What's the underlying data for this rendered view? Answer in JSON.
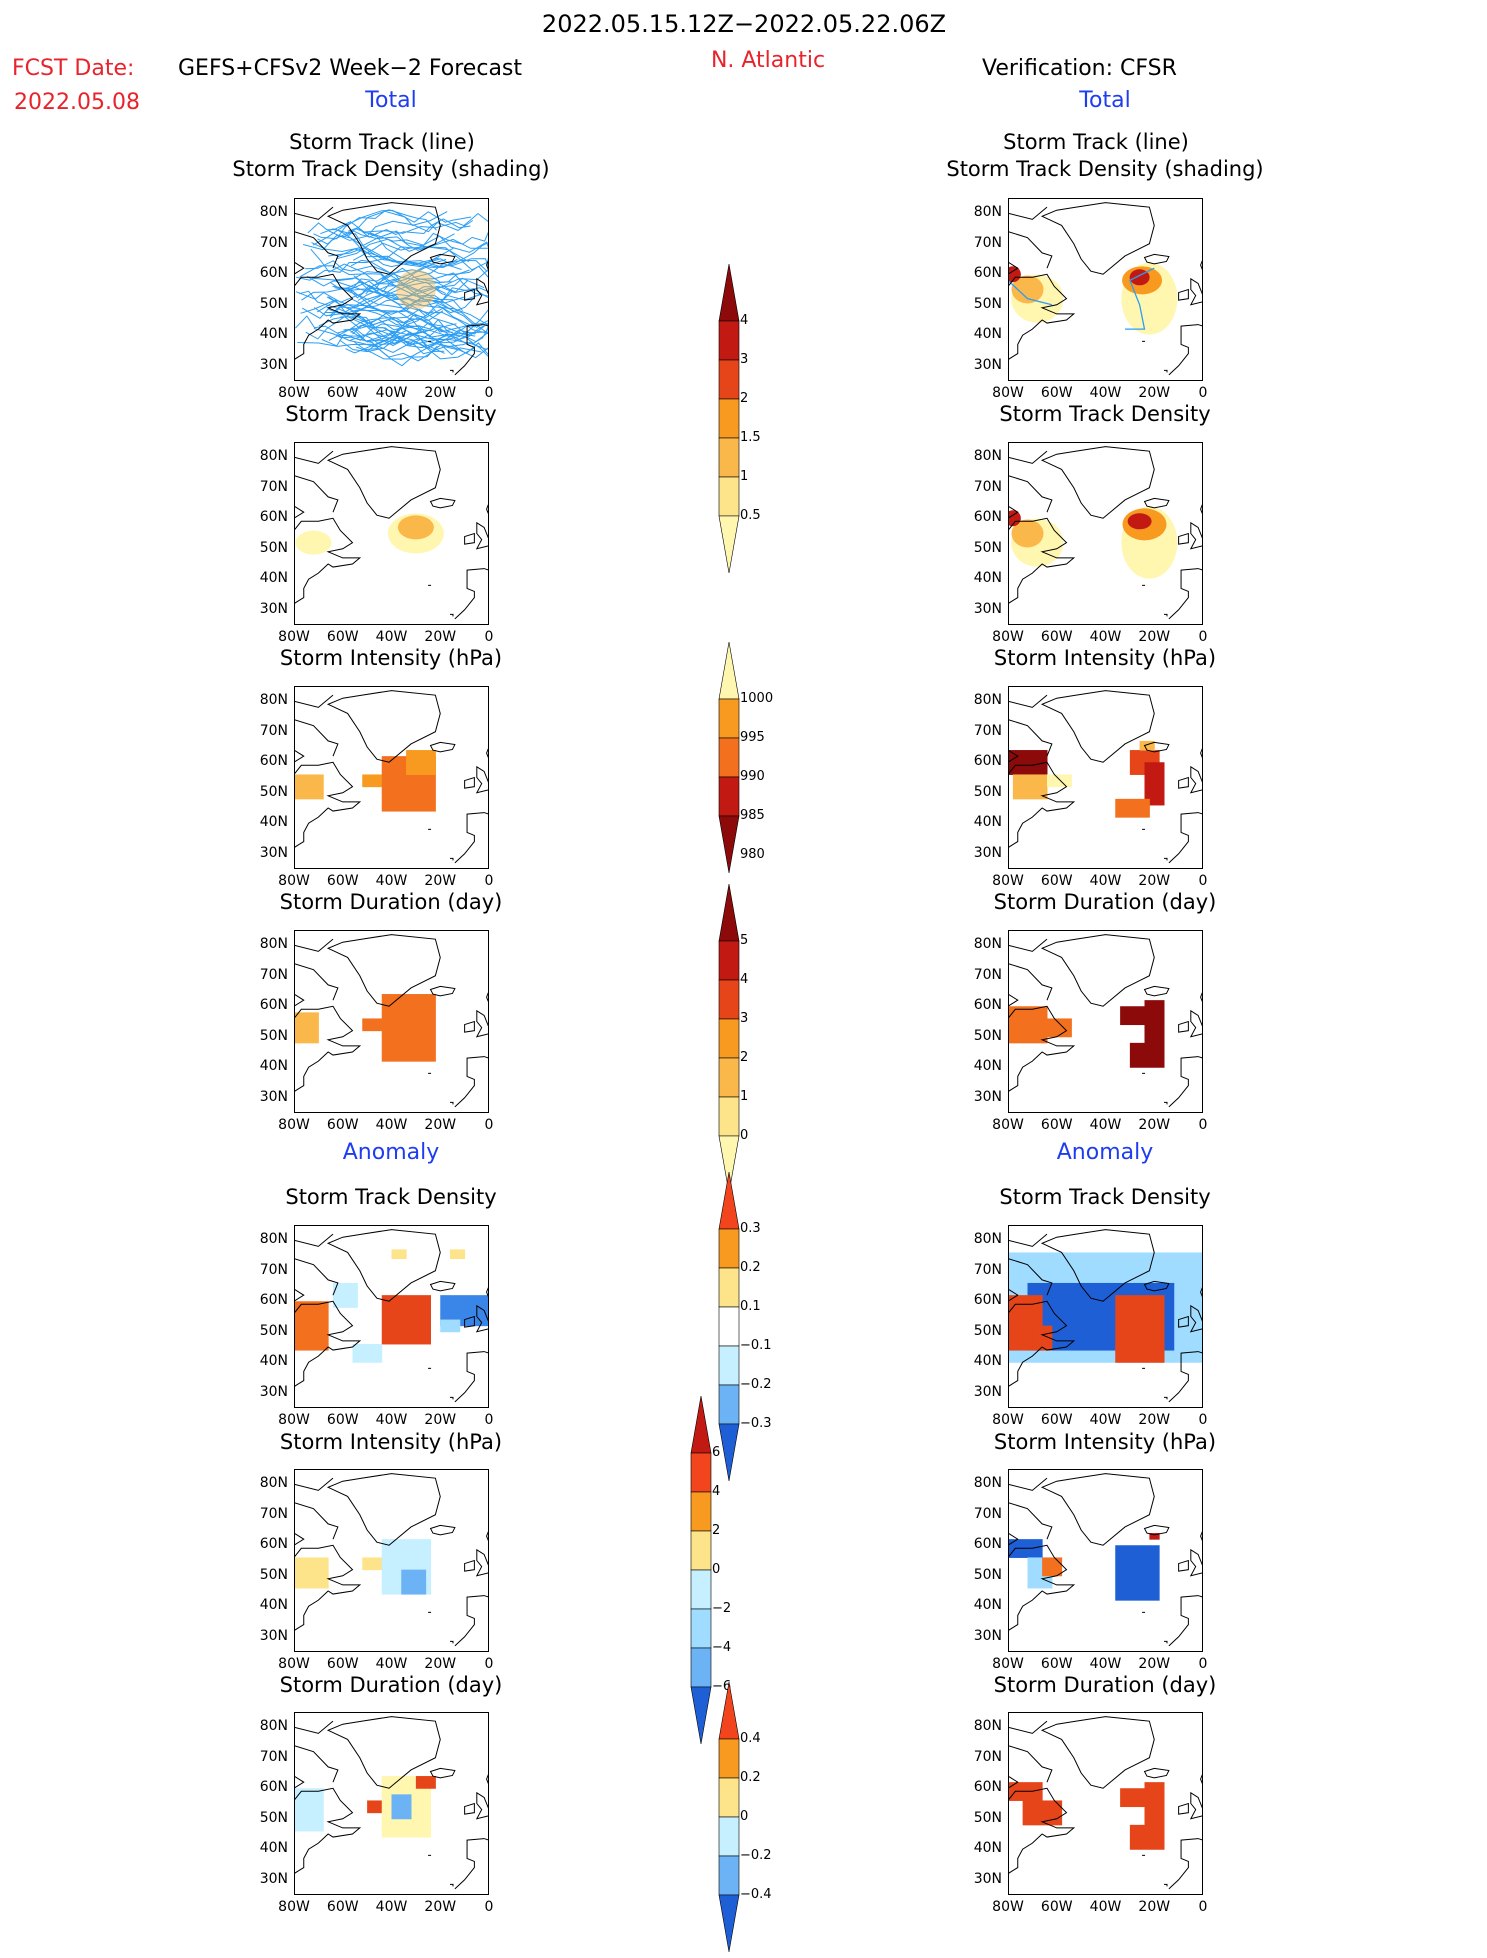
{
  "header": {
    "period": "2022.05.15.12Z−2022.05.22.06Z",
    "fcst_label": "FCST Date:",
    "fcst_model": "GEFS+CFSv2 Week−2 Forecast",
    "fcst_date": "2022.05.08",
    "region": "N. Atlantic",
    "verification": "Verification: CFSR"
  },
  "sections": {
    "total": "Total",
    "anomaly": "Anomaly"
  },
  "panel_titles": {
    "track_line": "Storm Track (line)",
    "track_shading": "Storm Track Density (shading)",
    "density": "Storm Track Density",
    "intensity": "Storm Intensity (hPa)",
    "duration": "Storm Duration (day)"
  },
  "axes": {
    "lat_ticks": [
      "80N",
      "70N",
      "60N",
      "50N",
      "40N",
      "30N"
    ],
    "lon_ticks": [
      "80W",
      "60W",
      "40W",
      "20W",
      "0"
    ]
  },
  "colorbars": {
    "density_total": [
      "4",
      "3",
      "2",
      "1.5",
      "1",
      "0.5"
    ],
    "intensity_total": [
      "1000",
      "995",
      "990",
      "985",
      "980"
    ],
    "duration_total": [
      "5",
      "4",
      "3",
      "2",
      "1",
      "0"
    ],
    "density_anom": [
      "0.3",
      "0.2",
      "0.1",
      "−0.1",
      "−0.2",
      "−0.3"
    ],
    "intensity_anom": [
      "6",
      "4",
      "2",
      "0",
      "−2",
      "−4",
      "−6"
    ],
    "duration_anom": [
      "0.4",
      "0.2",
      "0",
      "−0.2",
      "−0.4"
    ]
  },
  "colors": {
    "track_line": "#2a9df4",
    "warm": [
      "#fff6b0",
      "#fde38a",
      "#fbb84a",
      "#f89a1f",
      "#f2701e",
      "#e54518",
      "#c21a12",
      "#8c0a0a"
    ],
    "cool": [
      "#c6efff",
      "#9fdcff",
      "#6bb3f5",
      "#3a86e8",
      "#1f5fd6"
    ]
  }
}
